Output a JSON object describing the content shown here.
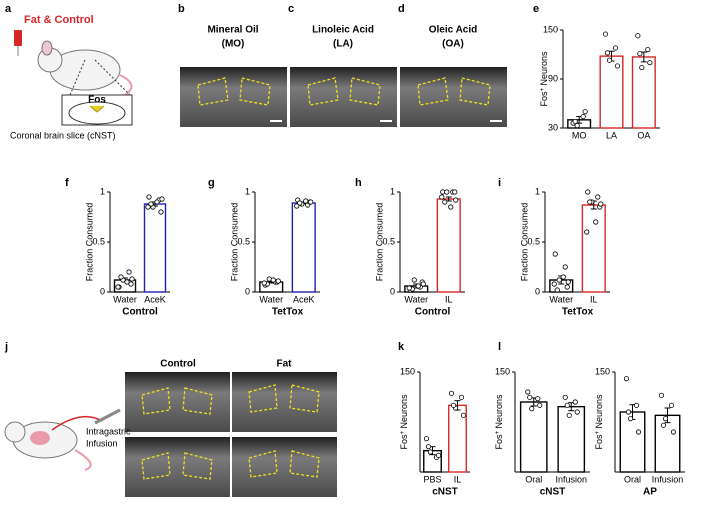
{
  "labels": {
    "panels": [
      "a",
      "b",
      "c",
      "d",
      "e",
      "f",
      "g",
      "h",
      "i",
      "j",
      "k",
      "l"
    ],
    "fat_control": "Fat & Control",
    "fos": "Fos",
    "slice": "Coronal brain slice (cNST)",
    "image_titles": [
      [
        "Mineral Oil",
        "(MO)"
      ],
      [
        "Linoleic Acid",
        "(LA)"
      ],
      [
        "Oleic Acid",
        "(OA)"
      ]
    ],
    "infusion": [
      "Intragastric",
      "Infusion"
    ],
    "j_headers": [
      "Control",
      "Fat"
    ]
  },
  "chart_data": [
    {
      "type": "bar",
      "ylabel": [
        "Fos",
        "+",
        " Neurons"
      ],
      "categories": [
        "MO",
        "LA",
        "OA"
      ],
      "values": [
        40,
        118,
        117
      ],
      "errors": [
        4,
        6,
        6
      ],
      "colors": [
        "#000000",
        "#d62728",
        "#d62728"
      ],
      "points": [
        [
          36,
          44,
          33,
          50,
          38
        ],
        [
          145,
          128,
          113,
          106,
          122
        ],
        [
          143,
          126,
          104,
          110,
          121
        ]
      ],
      "ylim": [
        30,
        150
      ],
      "yticks": [
        30,
        90,
        150
      ]
    },
    {
      "type": "bar",
      "ylabel": "Fraction Consumed",
      "xlabel": "Control",
      "categories": [
        "Water",
        "AceK"
      ],
      "values": [
        0.12,
        0.88
      ],
      "errors": [
        0.02,
        0.02
      ],
      "colors": [
        "#000000",
        "#1f1fb4"
      ],
      "points": [
        [
          0.05,
          0.2,
          0.12,
          0.08,
          0.15,
          0.1,
          0.05,
          0.13
        ],
        [
          0.95,
          0.92,
          0.85,
          0.8,
          0.88,
          0.9,
          0.85,
          0.93
        ]
      ],
      "ylim": [
        0,
        1
      ],
      "yticks": [
        0,
        0.5,
        1
      ]
    },
    {
      "type": "bar",
      "ylabel": "Fraction Consumed",
      "xlabel": "TetTox",
      "categories": [
        "Water",
        "AceK"
      ],
      "values": [
        0.1,
        0.89
      ],
      "errors": [
        0.01,
        0.01
      ],
      "colors": [
        "#000000",
        "#1f1fb4"
      ],
      "points": [
        [
          0.07,
          0.1,
          0.13,
          0.1,
          0.08,
          0.12,
          0.09,
          0.11
        ],
        [
          0.92,
          0.87,
          0.88,
          0.9,
          0.89,
          0.91,
          0.86,
          0.9
        ]
      ],
      "ylim": [
        0,
        1
      ],
      "yticks": [
        0,
        0.5,
        1
      ]
    },
    {
      "type": "bar",
      "ylabel": "Fraction Consumed",
      "xlabel": "Control",
      "categories": [
        "Water",
        "IL"
      ],
      "values": [
        0.06,
        0.93
      ],
      "errors": [
        0.02,
        0.02
      ],
      "colors": [
        "#000000",
        "#d62728"
      ],
      "points": [
        [
          0.02,
          0.05,
          0.12,
          0.1,
          0.03,
          0.06,
          0.04,
          0.08
        ],
        [
          1.0,
          1.0,
          1.0,
          1.0,
          0.9,
          0.85,
          0.95,
          0.92
        ]
      ],
      "ylim": [
        0,
        1
      ],
      "yticks": [
        0,
        0.5,
        1
      ]
    },
    {
      "type": "bar",
      "ylabel": "Fraction Consumed",
      "xlabel": "TetTox",
      "categories": [
        "Water",
        "IL"
      ],
      "values": [
        0.12,
        0.87
      ],
      "errors": [
        0.04,
        0.04
      ],
      "colors": [
        "#000000",
        "#d62728"
      ],
      "points": [
        [
          0.38,
          0.25,
          0.12,
          0.05,
          0.02,
          0.15,
          0.08,
          0.1
        ],
        [
          1.0,
          0.95,
          0.9,
          0.85,
          0.9,
          0.7,
          0.6,
          0.88
        ]
      ],
      "ylim": [
        0,
        1
      ],
      "yticks": [
        0,
        0.5,
        1
      ]
    },
    {
      "type": "bar",
      "ylabel": [
        "Fos",
        "+",
        " Neurons"
      ],
      "xlabel": "cNST",
      "categories": [
        "PBS",
        "IL"
      ],
      "values": [
        32,
        100
      ],
      "errors": [
        6,
        7
      ],
      "colors": [
        "#000000",
        "#d62728"
      ],
      "points": [
        [
          50,
          22,
          30,
          25,
          38
        ],
        [
          118,
          112,
          96,
          85,
          100
        ]
      ],
      "ylim": [
        0,
        150
      ],
      "yticks": [
        150
      ]
    },
    {
      "type": "bar",
      "ylabel": [
        "Fos",
        "+",
        " Neurons"
      ],
      "xlabel": "cNST",
      "categories": [
        "Oral",
        "Infusion"
      ],
      "values": [
        105,
        98
      ],
      "errors": [
        6,
        6
      ],
      "colors": [
        "#000000",
        "#000000"
      ],
      "points": [
        [
          120,
          110,
          95,
          100,
          112
        ],
        [
          112,
          105,
          85,
          90,
          100
        ]
      ],
      "ylim": [
        0,
        150
      ],
      "yticks": [
        150
      ]
    },
    {
      "type": "bar",
      "ylabel": [
        "Fos",
        "+",
        " Neurons"
      ],
      "xlabel": "AP",
      "categories": [
        "Oral",
        "Infusion"
      ],
      "values": [
        90,
        85
      ],
      "errors": [
        11,
        11
      ],
      "colors": [
        "#000000",
        "#000000"
      ],
      "points": [
        [
          140,
          100,
          80,
          60,
          90
        ],
        [
          115,
          100,
          80,
          60,
          70
        ]
      ],
      "ylim": [
        0,
        150
      ],
      "yticks": [
        150
      ]
    }
  ]
}
